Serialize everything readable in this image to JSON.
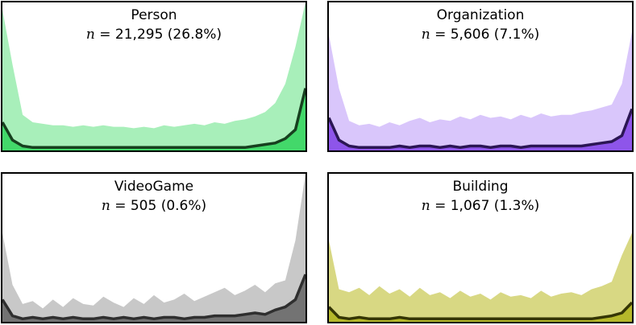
{
  "chart_data": [
    {
      "type": "area",
      "title": "Person",
      "subtitle_var": "n",
      "subtitle_rest": " = 21,295 (26.8%)",
      "colors": {
        "band": "#a8efba",
        "fill": "#43d86a",
        "line": "#17401f"
      },
      "band_top": [
        0.95,
        0.58,
        0.24,
        0.19,
        0.18,
        0.17,
        0.17,
        0.16,
        0.17,
        0.16,
        0.17,
        0.16,
        0.16,
        0.15,
        0.16,
        0.15,
        0.17,
        0.16,
        0.17,
        0.18,
        0.17,
        0.19,
        0.18,
        0.2,
        0.21,
        0.23,
        0.26,
        0.32,
        0.45,
        0.7,
        1.0
      ],
      "line": [
        0.19,
        0.07,
        0.03,
        0.02,
        0.02,
        0.02,
        0.02,
        0.02,
        0.02,
        0.02,
        0.02,
        0.02,
        0.02,
        0.02,
        0.02,
        0.02,
        0.02,
        0.02,
        0.02,
        0.02,
        0.02,
        0.02,
        0.02,
        0.02,
        0.02,
        0.03,
        0.04,
        0.05,
        0.08,
        0.14,
        0.42
      ]
    },
    {
      "type": "area",
      "title": "Organization",
      "subtitle_var": "n",
      "subtitle_rest": " = 5,606 (7.1%)",
      "colors": {
        "band": "#d9c6fb",
        "fill": "#8e55ea",
        "line": "#2b1654"
      },
      "band_top": [
        0.78,
        0.42,
        0.2,
        0.17,
        0.18,
        0.16,
        0.19,
        0.17,
        0.2,
        0.22,
        0.19,
        0.21,
        0.2,
        0.23,
        0.21,
        0.24,
        0.22,
        0.23,
        0.21,
        0.24,
        0.22,
        0.25,
        0.23,
        0.24,
        0.24,
        0.26,
        0.27,
        0.29,
        0.31,
        0.45,
        0.8
      ],
      "line": [
        0.22,
        0.07,
        0.03,
        0.02,
        0.02,
        0.02,
        0.02,
        0.03,
        0.02,
        0.03,
        0.03,
        0.02,
        0.03,
        0.02,
        0.03,
        0.03,
        0.02,
        0.03,
        0.03,
        0.02,
        0.03,
        0.03,
        0.03,
        0.03,
        0.03,
        0.03,
        0.04,
        0.05,
        0.06,
        0.1,
        0.28
      ]
    },
    {
      "type": "area",
      "title": "VideoGame",
      "subtitle_var": "n",
      "subtitle_rest": " = 505 (0.6%)",
      "colors": {
        "band": "#c8c8c8",
        "fill": "#737373",
        "line": "#2f2f2f"
      },
      "band_top": [
        0.6,
        0.25,
        0.12,
        0.14,
        0.09,
        0.15,
        0.1,
        0.16,
        0.12,
        0.11,
        0.17,
        0.13,
        0.1,
        0.16,
        0.12,
        0.18,
        0.13,
        0.15,
        0.19,
        0.14,
        0.17,
        0.2,
        0.23,
        0.18,
        0.21,
        0.25,
        0.2,
        0.26,
        0.28,
        0.55,
        1.0
      ],
      "line": [
        0.15,
        0.04,
        0.02,
        0.03,
        0.02,
        0.03,
        0.02,
        0.03,
        0.02,
        0.02,
        0.03,
        0.02,
        0.03,
        0.02,
        0.03,
        0.02,
        0.03,
        0.03,
        0.02,
        0.03,
        0.03,
        0.04,
        0.04,
        0.04,
        0.05,
        0.06,
        0.05,
        0.08,
        0.1,
        0.15,
        0.32
      ]
    },
    {
      "type": "area",
      "title": "Building",
      "subtitle_var": "n",
      "subtitle_rest": " = 1,067 (1.3%)",
      "colors": {
        "band": "#d8d883",
        "fill": "#b5b82a",
        "line": "#353605"
      },
      "band_top": [
        0.55,
        0.22,
        0.2,
        0.23,
        0.18,
        0.24,
        0.19,
        0.22,
        0.17,
        0.23,
        0.18,
        0.2,
        0.16,
        0.21,
        0.17,
        0.19,
        0.15,
        0.2,
        0.17,
        0.18,
        0.16,
        0.21,
        0.17,
        0.19,
        0.2,
        0.18,
        0.22,
        0.24,
        0.27,
        0.45,
        0.6
      ],
      "line": [
        0.1,
        0.03,
        0.02,
        0.03,
        0.02,
        0.02,
        0.02,
        0.03,
        0.02,
        0.02,
        0.02,
        0.02,
        0.02,
        0.02,
        0.02,
        0.02,
        0.02,
        0.02,
        0.02,
        0.02,
        0.02,
        0.02,
        0.02,
        0.02,
        0.02,
        0.02,
        0.02,
        0.03,
        0.04,
        0.06,
        0.13
      ]
    }
  ]
}
